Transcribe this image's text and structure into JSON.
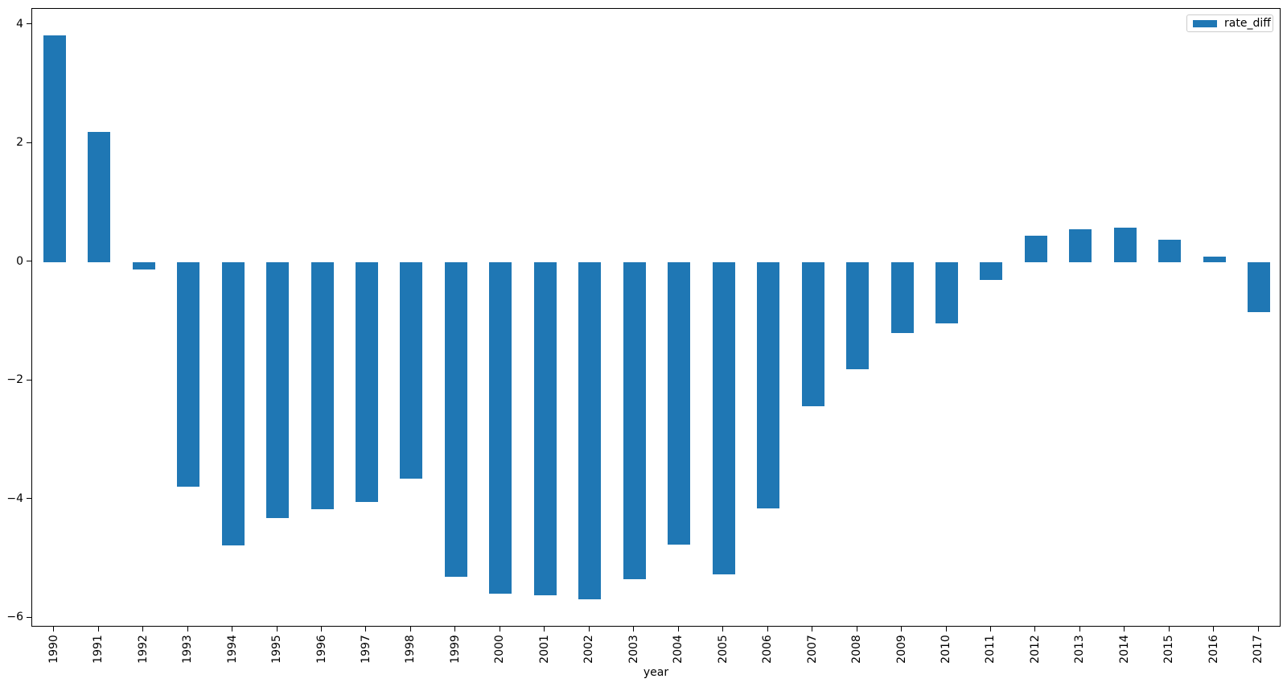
{
  "chart_data": {
    "type": "bar",
    "title": "",
    "xlabel": "year",
    "ylabel": "",
    "categories": [
      "1990",
      "1991",
      "1992",
      "1993",
      "1994",
      "1995",
      "1996",
      "1997",
      "1998",
      "1999",
      "2000",
      "2001",
      "2002",
      "2003",
      "2004",
      "2005",
      "2006",
      "2007",
      "2008",
      "2009",
      "2010",
      "2011",
      "2012",
      "2013",
      "2014",
      "2015",
      "2016",
      "2017"
    ],
    "series": [
      {
        "name": "rate_diff",
        "color": "#1f77b4",
        "values": [
          3.82,
          2.19,
          -0.12,
          -3.78,
          -4.77,
          -4.31,
          -4.16,
          -4.05,
          -3.65,
          -5.31,
          -5.59,
          -5.62,
          -5.69,
          -5.34,
          -4.76,
          -5.26,
          -4.15,
          -2.43,
          -1.81,
          -1.2,
          -1.04,
          -0.3,
          0.45,
          0.55,
          0.58,
          0.38,
          0.09,
          -0.85
        ]
      }
    ],
    "ylim": [
      -6.16,
      4.27
    ],
    "yticks": [
      4,
      2,
      0,
      -2,
      -4,
      -6
    ],
    "grid": false,
    "legend_position": "upper right",
    "bar_width_fraction": 0.5,
    "x_tick_rotation": 90,
    "bar_color": "#1f77b4",
    "spine_color": "#000000",
    "legend_border_color": "#cccccc"
  }
}
